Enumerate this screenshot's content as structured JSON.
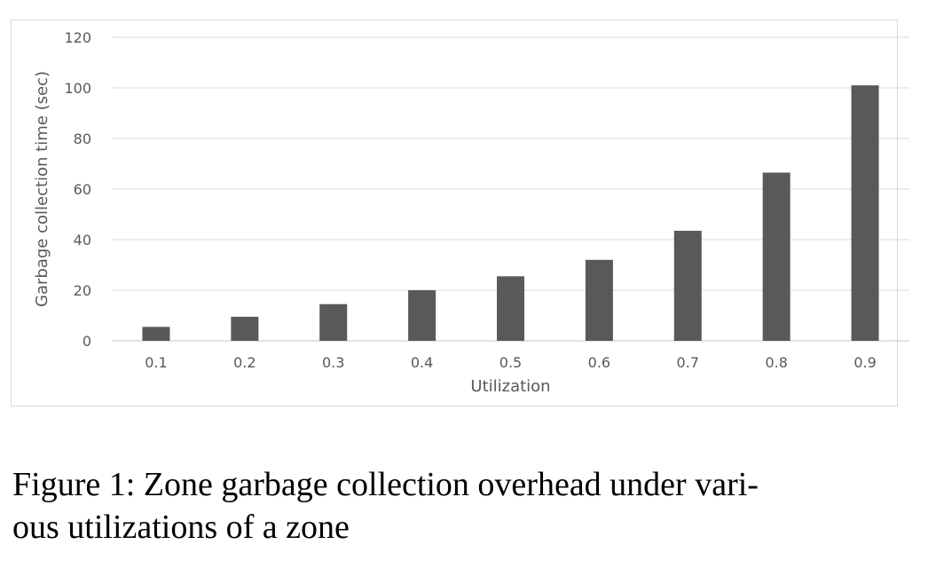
{
  "chart_data": {
    "type": "bar",
    "categories": [
      "0.1",
      "0.2",
      "0.3",
      "0.4",
      "0.5",
      "0.6",
      "0.7",
      "0.8",
      "0.9"
    ],
    "values": [
      5.5,
      9.5,
      14.5,
      20,
      25.5,
      32,
      43.5,
      66.5,
      101
    ],
    "xlabel": "Utilization",
    "ylabel": "Garbage collection time (sec)",
    "ylim": [
      0,
      120
    ],
    "yticks": [
      0,
      20,
      40,
      60,
      80,
      100,
      120
    ],
    "grid": true,
    "legend": "none",
    "bar_color": "#595959",
    "grid_color": "#d9d9d9"
  },
  "caption": {
    "line1": "Figure 1: Zone garbage collection overhead under vari-",
    "line2": "ous utilizations of a zone"
  }
}
